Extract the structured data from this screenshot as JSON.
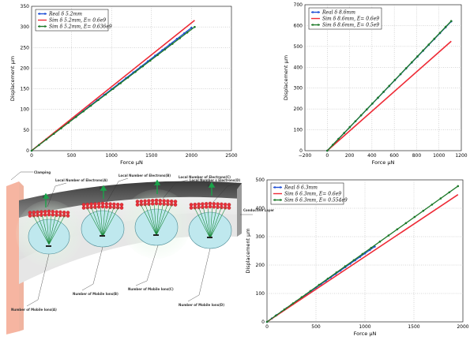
{
  "chart_data": [
    {
      "type": "line",
      "xlabel": "Force μN",
      "ylabel": "Displacement μm",
      "xlim": [
        0,
        2500
      ],
      "ylim": [
        0,
        350
      ],
      "xticks": [
        "0",
        "500",
        "1000",
        "1500",
        "2000",
        "2500"
      ],
      "yticks": [
        "0",
        "50",
        "100",
        "150",
        "200",
        "250",
        "300",
        "350"
      ],
      "grid": true,
      "legend_position": "top-left",
      "series": [
        {
          "name": "Real δ 5.2mm",
          "color": "#1f4fd6",
          "marker": "dot",
          "x": [
            0,
            2000
          ],
          "y": [
            0,
            298
          ]
        },
        {
          "name": "Sim δ 5.2mm, E= 0.6e9",
          "color": "#ee2a35",
          "marker": "none",
          "x": [
            0,
            2040
          ],
          "y": [
            0,
            316
          ]
        },
        {
          "name": "Sim δ 5.2mm, E= 0.636e9",
          "color": "#1e7a2a",
          "marker": "dot",
          "x": [
            0,
            2040
          ],
          "y": [
            0,
            300
          ]
        }
      ]
    },
    {
      "type": "line",
      "xlabel": "Force μN",
      "ylabel": "Displacement μm",
      "xlim": [
        -200,
        1200
      ],
      "ylim": [
        0,
        700
      ],
      "xticks": [
        "−200",
        "0",
        "200",
        "400",
        "600",
        "800",
        "1000",
        "1200"
      ],
      "yticks": [
        "0",
        "100",
        "200",
        "300",
        "400",
        "500",
        "600",
        "700"
      ],
      "grid": true,
      "legend_position": "top-left",
      "series": [
        {
          "name": "Real δ 8.6mm",
          "color": "#1f4fd6",
          "marker": "dot",
          "x": [
            0,
            1110
          ],
          "y": [
            0,
            620
          ]
        },
        {
          "name": "Sim δ 8.6mm, E= 0.6e9",
          "color": "#ee2a35",
          "marker": "none",
          "x": [
            0,
            1110
          ],
          "y": [
            0,
            525
          ]
        },
        {
          "name": "Sim δ  8.6mm, E= 0.5e9",
          "color": "#1e7a2a",
          "marker": "dot",
          "x": [
            0,
            1110
          ],
          "y": [
            0,
            622
          ]
        }
      ]
    },
    {
      "type": "line",
      "xlabel": "Force μN",
      "ylabel": "Displacement μm",
      "xlim": [
        0,
        2000
      ],
      "ylim": [
        0,
        500
      ],
      "xticks": [
        "0",
        "500",
        "1000",
        "1500",
        "2000"
      ],
      "yticks": [
        "0",
        "100",
        "200",
        "300",
        "400",
        "500"
      ],
      "grid": true,
      "legend_position": "top-left",
      "series": [
        {
          "name": "Real δ 6.3mm",
          "color": "#1f4fd6",
          "marker": "dot",
          "x": [
            0,
            1100
          ],
          "y": [
            0,
            265
          ]
        },
        {
          "name": "Sim δ 6.3mm, E= 0.6e9",
          "color": "#ee2a35",
          "marker": "none",
          "x": [
            0,
            1950
          ],
          "y": [
            0,
            448
          ]
        },
        {
          "name": "Sim δ 6.3mm, E= 0.554e9",
          "color": "#1e7a2a",
          "marker": "dot",
          "x": [
            0,
            1950
          ],
          "y": [
            0,
            478
          ]
        }
      ]
    }
  ],
  "diagram": {
    "labels": {
      "clamping": "Clamping",
      "conductive_layer": "Conductive Layer",
      "electrons": [
        "Local Number of Electrons(A)",
        "Local Number of Electrons(B)",
        "Local Number of Electrons(C)",
        "Local Number s Electrons(D)"
      ],
      "ions": [
        "Number of Mobile Ions(A)",
        "Number of Mobile Ions(B)",
        "Number of Mobile Ions(C)",
        "Number of Mobile Ions(D)"
      ],
      "force_symbol": "F"
    },
    "colors": {
      "clamp": "#f4a890",
      "beam_dark": "#555555",
      "electron": "#e8303a",
      "ion_circle": "#bfe8ee",
      "field_lines": "#1a8a3a",
      "glow": "#d6f2d8"
    }
  }
}
